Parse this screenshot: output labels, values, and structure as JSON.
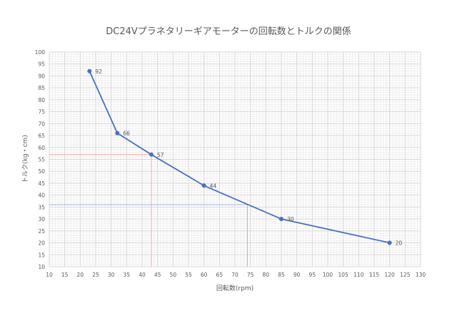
{
  "chart_data": {
    "type": "line",
    "title": "DC24Vプラネタリーギアモーターの回転数とトルクの関係",
    "xlabel": "回転数(rpm)",
    "ylabel": "トルク(kg・cm)",
    "xlim": [
      10,
      130
    ],
    "ylim": [
      10,
      100
    ],
    "x_ticks": [
      10,
      15,
      20,
      25,
      30,
      35,
      40,
      45,
      50,
      55,
      60,
      65,
      70,
      75,
      80,
      85,
      90,
      95,
      100,
      105,
      110,
      115,
      120,
      125,
      130
    ],
    "y_ticks": [
      10,
      15,
      20,
      25,
      30,
      35,
      40,
      45,
      50,
      55,
      60,
      65,
      70,
      75,
      80,
      85,
      90,
      95,
      100
    ],
    "grid": true,
    "series": [
      {
        "x": [
          23,
          32,
          43,
          60,
          85,
          120
        ],
        "y": [
          92,
          66,
          57,
          44,
          30,
          20
        ],
        "labels": [
          "92",
          "66",
          "57",
          "44",
          "30",
          "20"
        ],
        "color": "#4472c4"
      }
    ],
    "guides": [
      {
        "x": 43,
        "y": 57,
        "color": "#f4a6a6"
      },
      {
        "x": 74,
        "y": 36,
        "color": "#9fb3de"
      }
    ]
  }
}
